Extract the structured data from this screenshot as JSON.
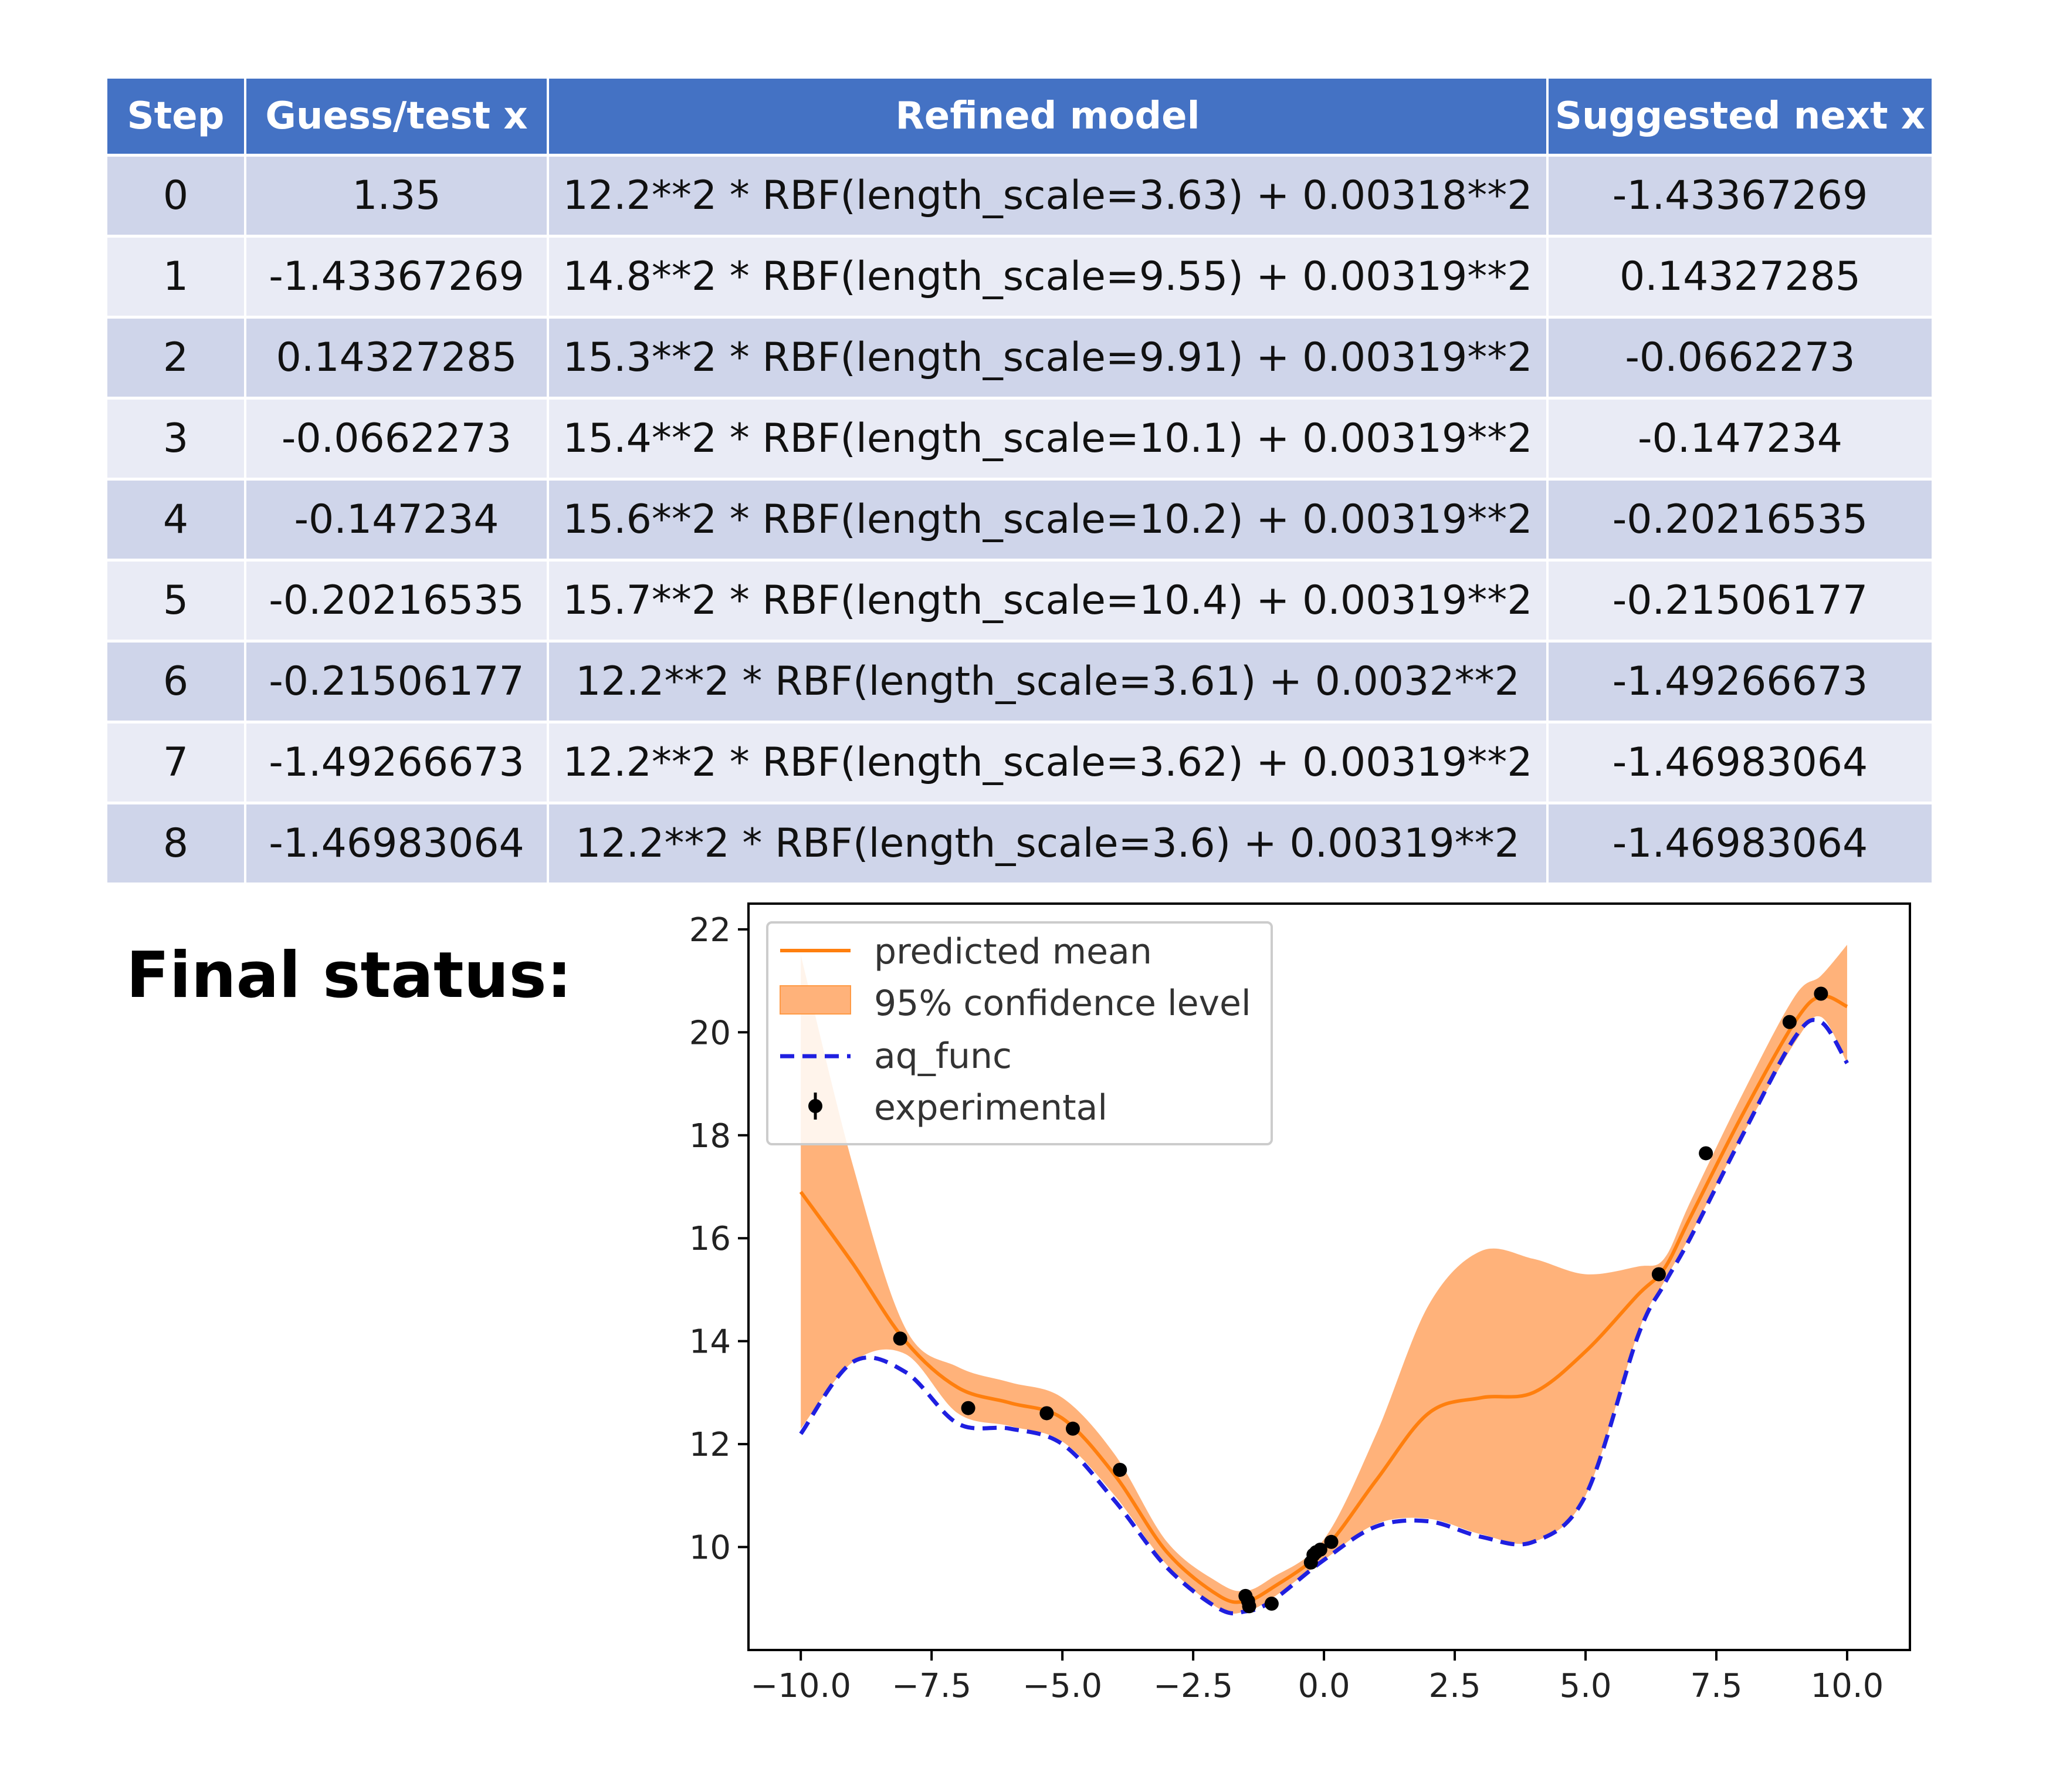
{
  "table": {
    "headers": [
      "Step",
      "Guess/test x",
      "Refined model",
      "Suggested next x"
    ],
    "rows": [
      [
        "0",
        "1.35",
        "12.2**2 * RBF(length_scale=3.63) + 0.00318**2",
        "-1.43367269"
      ],
      [
        "1",
        "-1.43367269",
        "14.8**2 * RBF(length_scale=9.55) + 0.00319**2",
        "0.14327285"
      ],
      [
        "2",
        "0.14327285",
        "15.3**2 * RBF(length_scale=9.91) + 0.00319**2",
        "-0.0662273"
      ],
      [
        "3",
        "-0.0662273",
        "15.4**2 * RBF(length_scale=10.1) + 0.00319**2",
        "-0.147234"
      ],
      [
        "4",
        "-0.147234",
        "15.6**2 * RBF(length_scale=10.2) + 0.00319**2",
        "-0.20216535"
      ],
      [
        "5",
        "-0.20216535",
        "15.7**2 * RBF(length_scale=10.4) + 0.00319**2",
        "-0.21506177"
      ],
      [
        "6",
        "-0.21506177",
        "12.2**2 * RBF(length_scale=3.61) + 0.0032**2",
        "-1.49266673"
      ],
      [
        "7",
        "-1.49266673",
        "12.2**2 * RBF(length_scale=3.62) + 0.00319**2",
        "-1.46983064"
      ],
      [
        "8",
        "-1.46983064",
        "12.2**2 * RBF(length_scale=3.6) + 0.00319**2",
        "-1.46983064"
      ]
    ]
  },
  "final_status_label": "Final status:",
  "colors": {
    "header": "#4472c4",
    "row_odd": "#cfd5ea",
    "row_even": "#e9ebf5",
    "mean": "#ff7f0e",
    "band": "#ffb27a",
    "aq": "#1f1fe0",
    "points": "#000000"
  },
  "chart_data": {
    "type": "line",
    "xlim": [
      -11,
      11.2
    ],
    "ylim": [
      8.0,
      22.5
    ],
    "xticks": [
      -10.0,
      -7.5,
      -5.0,
      -2.5,
      0.0,
      2.5,
      5.0,
      7.5,
      10.0
    ],
    "xtick_labels": [
      "−10.0",
      "−7.5",
      "−5.0",
      "−2.5",
      "0.0",
      "2.5",
      "5.0",
      "7.5",
      "10.0"
    ],
    "yticks": [
      10,
      12,
      14,
      16,
      18,
      20,
      22
    ],
    "ytick_labels": [
      "10",
      "12",
      "14",
      "16",
      "18",
      "20",
      "22"
    ],
    "legend_position": "top-left",
    "legend": [
      "predicted mean",
      "95% confidence level",
      "aq_func",
      "experimental"
    ],
    "x": [
      -10,
      -9,
      -8,
      -7,
      -6,
      -5,
      -4,
      -3,
      -2,
      -1.5,
      -1,
      0,
      1,
      2,
      3,
      4,
      5,
      6,
      6.5,
      7,
      8,
      9,
      9.5,
      10
    ],
    "series": [
      {
        "name": "predicted mean",
        "values": [
          16.9,
          15.5,
          14.0,
          13.1,
          12.8,
          12.5,
          11.4,
          9.9,
          9.05,
          8.95,
          9.2,
          9.95,
          11.3,
          12.6,
          12.9,
          13.0,
          13.8,
          14.9,
          15.4,
          16.4,
          18.4,
          20.2,
          20.7,
          20.5
        ]
      },
      {
        "name": "95% confidence level upper",
        "values": [
          21.5,
          17.4,
          14.25,
          13.5,
          13.2,
          12.9,
          11.8,
          10.1,
          9.3,
          9.15,
          9.4,
          10.15,
          12.2,
          14.7,
          15.75,
          15.6,
          15.3,
          15.45,
          15.6,
          16.7,
          18.8,
          20.7,
          21.1,
          21.7
        ]
      },
      {
        "name": "95% confidence level lower",
        "values": [
          12.3,
          13.6,
          13.75,
          12.6,
          12.35,
          12.05,
          11.0,
          9.65,
          8.8,
          8.75,
          9.0,
          9.75,
          10.45,
          10.55,
          10.25,
          10.1,
          11.0,
          14.15,
          15.15,
          16.05,
          18.0,
          19.8,
          20.3,
          19.4
        ]
      },
      {
        "name": "aq_func",
        "values": [
          12.2,
          13.6,
          13.4,
          12.4,
          12.3,
          12.0,
          10.9,
          9.6,
          8.8,
          8.75,
          8.95,
          9.75,
          10.4,
          10.5,
          10.2,
          10.1,
          11.0,
          14.1,
          15.1,
          16.0,
          18.0,
          19.9,
          20.2,
          19.4
        ]
      },
      {
        "name": "experimental",
        "x": [
          -8.1,
          -6.8,
          -5.3,
          -4.8,
          -3.9,
          -1.5,
          -1.45,
          -1.43,
          -1.0,
          -0.25,
          -0.2,
          -0.15,
          -0.07,
          0.14,
          6.4,
          7.3,
          8.9,
          9.5
        ],
        "values": [
          14.05,
          12.7,
          12.6,
          12.3,
          11.5,
          9.05,
          8.95,
          8.85,
          8.9,
          9.7,
          9.85,
          9.9,
          9.95,
          10.1,
          15.3,
          17.65,
          20.2,
          20.75
        ]
      }
    ]
  }
}
